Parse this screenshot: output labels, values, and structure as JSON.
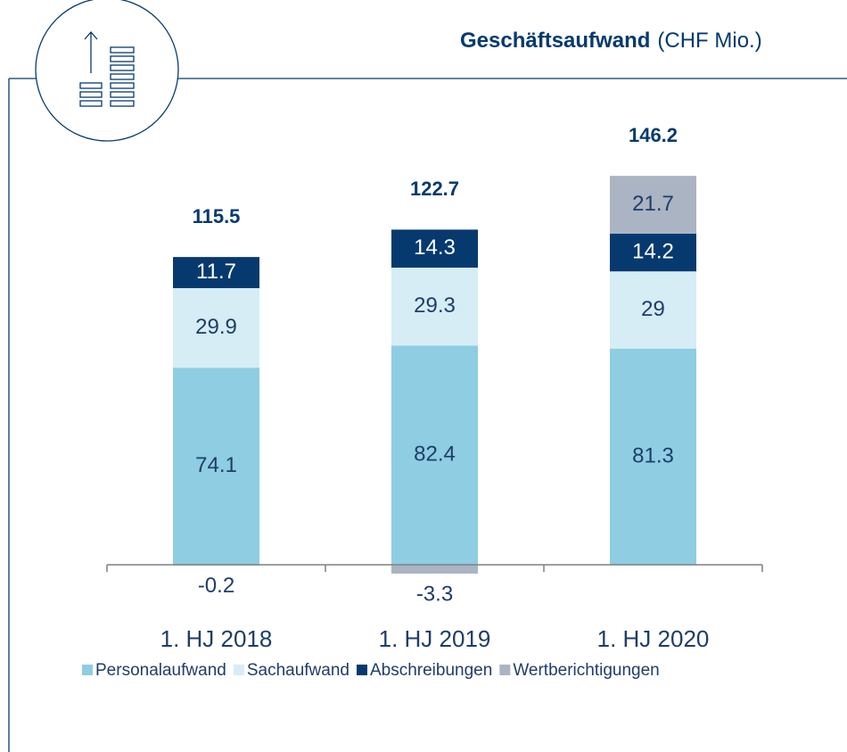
{
  "chart_data": {
    "type": "stacked_bar",
    "title": "Geschäftsaufwand",
    "unit": "(CHF Mio.)",
    "categories": [
      "1. HJ 2018",
      "1. HJ 2019",
      "1. HJ 2020"
    ],
    "series": [
      {
        "name": "Personalaufwand",
        "color": "#8ecde2",
        "values": [
          74.1,
          82.4,
          81.3
        ]
      },
      {
        "name": "Sachaufwand",
        "color": "#d6edf5",
        "values": [
          29.9,
          29.3,
          29.0
        ]
      },
      {
        "name": "Abschreibungen",
        "color": "#063a6e",
        "values": [
          11.7,
          14.3,
          14.2
        ]
      },
      {
        "name": "Wertberichtigungen",
        "color": "#aab4c2",
        "values": [
          -0.2,
          -3.3,
          21.7
        ]
      }
    ],
    "totals": [
      115.5,
      122.7,
      146.2
    ],
    "ylim": [
      -10,
      160
    ]
  }
}
